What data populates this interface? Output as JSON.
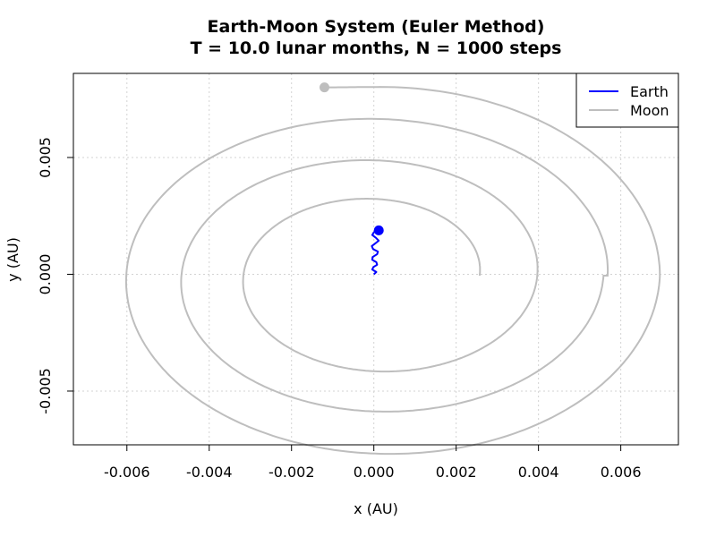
{
  "chart_data": {
    "type": "line",
    "title": "Earth-Moon System (Euler Method)",
    "subtitle": "T = 10.0 lunar months, N = 1000 steps",
    "xlabel": "x (AU)",
    "ylabel": "y (AU)",
    "xlim": [
      -0.0073,
      0.0074
    ],
    "ylim": [
      -0.0073,
      0.0086
    ],
    "xticks": [
      -0.006,
      -0.004,
      -0.002,
      0.0,
      0.002,
      0.004,
      0.006
    ],
    "xtick_labels": [
      "-0.006",
      "-0.004",
      "-0.002",
      "0.000",
      "0.002",
      "0.004",
      "0.006"
    ],
    "yticks": [
      -0.005,
      0.0,
      0.005
    ],
    "ytick_labels": [
      "-0.005",
      "0.000",
      "0.005"
    ],
    "grid": true,
    "legend_position": "top-right",
    "series": [
      {
        "name": "Earth",
        "color": "#0000ff",
        "points": [
          [
            0.0,
            0.0
          ],
          [
            6e-05,
            0.0001
          ],
          [
            -4e-05,
            0.0002
          ],
          [
            -1e-05,
            0.00031
          ],
          [
            8e-05,
            0.00041
          ],
          [
            6e-05,
            0.00052
          ],
          [
            -4e-05,
            0.00062
          ],
          [
            -3e-05,
            0.00074
          ],
          [
            8e-05,
            0.00086
          ],
          [
            0.0001,
            0.00097
          ],
          [
            -2e-05,
            0.00108
          ],
          [
            -5e-05,
            0.00121
          ],
          [
            4e-05,
            0.00133
          ],
          [
            0.00012,
            0.00144
          ],
          [
            5e-05,
            0.00156
          ],
          [
            -4e-05,
            0.00168
          ],
          [
            0.0,
            0.0018
          ],
          [
            0.00012,
            0.00188
          ]
        ],
        "end_marker": [
          0.00012,
          0.00188
        ]
      },
      {
        "name": "Moon",
        "color": "#bebebe",
        "start": [
          0.00257,
          0.0
        ],
        "end_marker": [
          -0.0012,
          0.008
        ],
        "laps": [
          {
            "center_x": 5e-05,
            "center_y": -6e-05,
            "a_start": 0.00252,
            "a_end": 0.00392,
            "b_start": 0.00288,
            "b_end": 0.0045
          },
          {
            "center_x": 5e-05,
            "center_y": -6e-05,
            "a_start": 0.00392,
            "a_end": 0.00553,
            "b_start": 0.0045,
            "b_end": 0.00625
          },
          {
            "center_x": 0.00015,
            "center_y": -6e-05,
            "a_start": 0.00553,
            "a_end": 0.0068,
            "b_start": 0.00625,
            "b_end": 0.00808
          }
        ],
        "final_segment_end": [
          -0.0012,
          0.008
        ]
      }
    ]
  }
}
